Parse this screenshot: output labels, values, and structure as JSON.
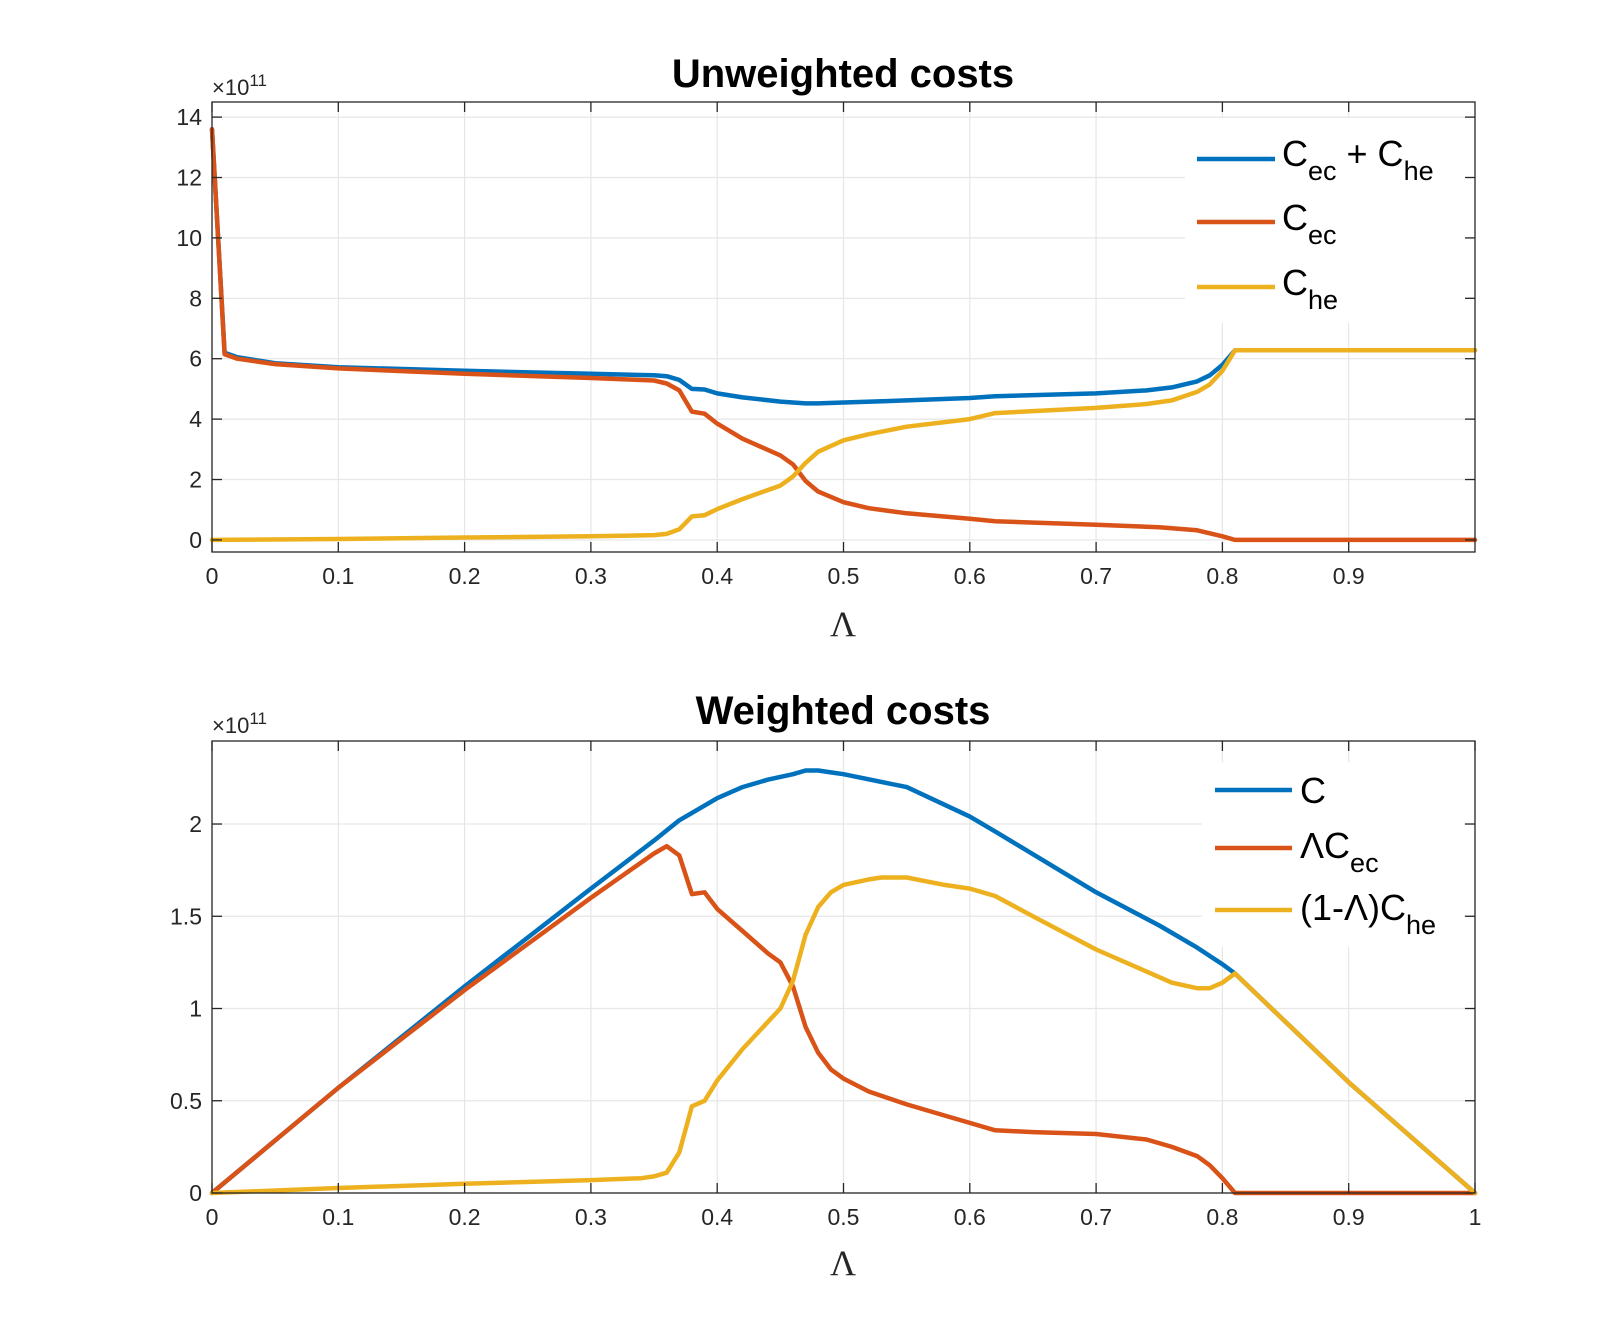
{
  "colors": {
    "blue": "#0072BD",
    "orange": "#D95319",
    "yellow": "#EDB120"
  },
  "chart_data": [
    {
      "type": "line",
      "title": "Unweighted costs",
      "xlabel": "Λ",
      "ylabel": "",
      "y_exponent_base": "×10",
      "y_exponent_power": "11",
      "xlim": [
        0,
        1
      ],
      "ylim": [
        -0.4,
        14.5
      ],
      "x_ticks": [
        0,
        0.1,
        0.2,
        0.3,
        0.4,
        0.5,
        0.6,
        0.7,
        0.8,
        0.9
      ],
      "x_tick_labels": [
        "0",
        "0.1",
        "0.2",
        "0.3",
        "0.4",
        "0.5",
        "0.6",
        "0.7",
        "0.8",
        "0.9"
      ],
      "y_ticks": [
        0,
        2,
        4,
        6,
        8,
        10,
        12,
        14
      ],
      "y_tick_labels": [
        "0",
        "2",
        "4",
        "6",
        "8",
        "10",
        "12",
        "14"
      ],
      "grid": true,
      "legend_position": "top-right",
      "series": [
        {
          "color": "blue",
          "legend": {
            "main": "C",
            "sub": "ec",
            "mid": " + C",
            "sub2": "he"
          },
          "points": [
            [
              0,
              13.6
            ],
            [
              0.01,
              6.2
            ],
            [
              0.02,
              6.05
            ],
            [
              0.05,
              5.85
            ],
            [
              0.1,
              5.72
            ],
            [
              0.2,
              5.6
            ],
            [
              0.3,
              5.5
            ],
            [
              0.35,
              5.45
            ],
            [
              0.36,
              5.42
            ],
            [
              0.37,
              5.3
            ],
            [
              0.38,
              5.0
            ],
            [
              0.39,
              4.98
            ],
            [
              0.4,
              4.85
            ],
            [
              0.42,
              4.72
            ],
            [
              0.45,
              4.58
            ],
            [
              0.47,
              4.52
            ],
            [
              0.48,
              4.52
            ],
            [
              0.5,
              4.55
            ],
            [
              0.55,
              4.62
            ],
            [
              0.6,
              4.7
            ],
            [
              0.62,
              4.76
            ],
            [
              0.7,
              4.85
            ],
            [
              0.74,
              4.95
            ],
            [
              0.76,
              5.05
            ],
            [
              0.78,
              5.25
            ],
            [
              0.79,
              5.45
            ],
            [
              0.8,
              5.8
            ],
            [
              0.81,
              6.28
            ],
            [
              0.9,
              6.28
            ],
            [
              1.0,
              6.28
            ]
          ]
        },
        {
          "color": "orange",
          "legend": {
            "main": "C",
            "sub": "ec"
          },
          "points": [
            [
              0,
              13.6
            ],
            [
              0.01,
              6.15
            ],
            [
              0.02,
              6.0
            ],
            [
              0.05,
              5.82
            ],
            [
              0.1,
              5.68
            ],
            [
              0.2,
              5.5
            ],
            [
              0.3,
              5.36
            ],
            [
              0.35,
              5.28
            ],
            [
              0.36,
              5.18
            ],
            [
              0.37,
              4.95
            ],
            [
              0.38,
              4.25
            ],
            [
              0.39,
              4.18
            ],
            [
              0.4,
              3.85
            ],
            [
              0.42,
              3.35
            ],
            [
              0.45,
              2.8
            ],
            [
              0.46,
              2.5
            ],
            [
              0.47,
              1.95
            ],
            [
              0.48,
              1.6
            ],
            [
              0.5,
              1.25
            ],
            [
              0.52,
              1.05
            ],
            [
              0.55,
              0.88
            ],
            [
              0.6,
              0.7
            ],
            [
              0.62,
              0.62
            ],
            [
              0.7,
              0.5
            ],
            [
              0.75,
              0.42
            ],
            [
              0.78,
              0.32
            ],
            [
              0.79,
              0.22
            ],
            [
              0.8,
              0.12
            ],
            [
              0.81,
              0
            ],
            [
              0.9,
              0
            ],
            [
              1.0,
              0
            ]
          ]
        },
        {
          "color": "yellow",
          "legend": {
            "main": "C",
            "sub": "he"
          },
          "points": [
            [
              0,
              0
            ],
            [
              0.1,
              0.03
            ],
            [
              0.2,
              0.08
            ],
            [
              0.3,
              0.12
            ],
            [
              0.35,
              0.16
            ],
            [
              0.36,
              0.2
            ],
            [
              0.37,
              0.35
            ],
            [
              0.38,
              0.78
            ],
            [
              0.39,
              0.82
            ],
            [
              0.4,
              1.02
            ],
            [
              0.42,
              1.35
            ],
            [
              0.45,
              1.8
            ],
            [
              0.46,
              2.1
            ],
            [
              0.47,
              2.55
            ],
            [
              0.48,
              2.92
            ],
            [
              0.5,
              3.3
            ],
            [
              0.52,
              3.5
            ],
            [
              0.55,
              3.75
            ],
            [
              0.6,
              4.0
            ],
            [
              0.62,
              4.2
            ],
            [
              0.7,
              4.37
            ],
            [
              0.74,
              4.5
            ],
            [
              0.76,
              4.62
            ],
            [
              0.78,
              4.9
            ],
            [
              0.79,
              5.15
            ],
            [
              0.8,
              5.6
            ],
            [
              0.81,
              6.28
            ],
            [
              0.9,
              6.28
            ],
            [
              1.0,
              6.28
            ]
          ]
        }
      ]
    },
    {
      "type": "line",
      "title": "Weighted costs",
      "xlabel": "Λ",
      "ylabel": "",
      "y_exponent_base": "×10",
      "y_exponent_power": "11",
      "xlim": [
        0,
        1
      ],
      "ylim": [
        0,
        2.45
      ],
      "x_ticks": [
        0,
        0.1,
        0.2,
        0.3,
        0.4,
        0.5,
        0.6,
        0.7,
        0.8,
        0.9,
        1
      ],
      "x_tick_labels": [
        "0",
        "0.1",
        "0.2",
        "0.3",
        "0.4",
        "0.5",
        "0.6",
        "0.7",
        "0.8",
        "0.9",
        "1"
      ],
      "y_ticks": [
        0,
        0.5,
        1,
        1.5,
        2
      ],
      "y_tick_labels": [
        "0",
        "0.5",
        "1",
        "1.5",
        "2"
      ],
      "grid": true,
      "legend_position": "top-right",
      "series": [
        {
          "color": "blue",
          "legend": {
            "main": "C"
          },
          "points": [
            [
              0,
              0
            ],
            [
              0.1,
              0.57
            ],
            [
              0.2,
              1.12
            ],
            [
              0.3,
              1.65
            ],
            [
              0.35,
              1.91
            ],
            [
              0.37,
              2.02
            ],
            [
              0.39,
              2.1
            ],
            [
              0.4,
              2.14
            ],
            [
              0.42,
              2.2
            ],
            [
              0.44,
              2.24
            ],
            [
              0.46,
              2.27
            ],
            [
              0.47,
              2.29
            ],
            [
              0.48,
              2.29
            ],
            [
              0.49,
              2.28
            ],
            [
              0.5,
              2.27
            ],
            [
              0.55,
              2.2
            ],
            [
              0.6,
              2.04
            ],
            [
              0.62,
              1.96
            ],
            [
              0.7,
              1.63
            ],
            [
              0.75,
              1.45
            ],
            [
              0.78,
              1.33
            ],
            [
              0.8,
              1.24
            ],
            [
              0.81,
              1.19
            ],
            [
              0.9,
              0.6
            ],
            [
              1.0,
              0
            ]
          ]
        },
        {
          "color": "orange",
          "legend": {
            "main": "ΛC",
            "sub": "ec"
          },
          "points": [
            [
              0,
              0
            ],
            [
              0.1,
              0.57
            ],
            [
              0.2,
              1.1
            ],
            [
              0.3,
              1.6
            ],
            [
              0.35,
              1.84
            ],
            [
              0.36,
              1.88
            ],
            [
              0.37,
              1.83
            ],
            [
              0.38,
              1.62
            ],
            [
              0.39,
              1.63
            ],
            [
              0.4,
              1.54
            ],
            [
              0.42,
              1.42
            ],
            [
              0.44,
              1.3
            ],
            [
              0.45,
              1.25
            ],
            [
              0.46,
              1.12
            ],
            [
              0.47,
              0.9
            ],
            [
              0.48,
              0.76
            ],
            [
              0.49,
              0.67
            ],
            [
              0.5,
              0.62
            ],
            [
              0.52,
              0.55
            ],
            [
              0.55,
              0.48
            ],
            [
              0.58,
              0.42
            ],
            [
              0.6,
              0.38
            ],
            [
              0.62,
              0.34
            ],
            [
              0.65,
              0.33
            ],
            [
              0.7,
              0.32
            ],
            [
              0.74,
              0.29
            ],
            [
              0.76,
              0.25
            ],
            [
              0.78,
              0.2
            ],
            [
              0.79,
              0.15
            ],
            [
              0.8,
              0.08
            ],
            [
              0.81,
              0
            ],
            [
              0.9,
              0
            ],
            [
              1.0,
              0
            ]
          ]
        },
        {
          "color": "yellow",
          "legend": {
            "main": "(1-Λ)C",
            "sub": "he"
          },
          "points": [
            [
              0,
              0
            ],
            [
              0.1,
              0.027
            ],
            [
              0.2,
              0.05
            ],
            [
              0.3,
              0.07
            ],
            [
              0.34,
              0.08
            ],
            [
              0.35,
              0.09
            ],
            [
              0.36,
              0.11
            ],
            [
              0.37,
              0.22
            ],
            [
              0.38,
              0.47
            ],
            [
              0.39,
              0.5
            ],
            [
              0.4,
              0.61
            ],
            [
              0.42,
              0.78
            ],
            [
              0.45,
              1.0
            ],
            [
              0.46,
              1.15
            ],
            [
              0.47,
              1.4
            ],
            [
              0.48,
              1.55
            ],
            [
              0.49,
              1.63
            ],
            [
              0.5,
              1.67
            ],
            [
              0.52,
              1.7
            ],
            [
              0.53,
              1.71
            ],
            [
              0.55,
              1.71
            ],
            [
              0.58,
              1.67
            ],
            [
              0.6,
              1.65
            ],
            [
              0.62,
              1.61
            ],
            [
              0.65,
              1.5
            ],
            [
              0.7,
              1.32
            ],
            [
              0.74,
              1.2
            ],
            [
              0.76,
              1.14
            ],
            [
              0.78,
              1.11
            ],
            [
              0.79,
              1.11
            ],
            [
              0.8,
              1.14
            ],
            [
              0.81,
              1.19
            ],
            [
              0.9,
              0.6
            ],
            [
              1.0,
              0
            ]
          ]
        }
      ]
    }
  ]
}
